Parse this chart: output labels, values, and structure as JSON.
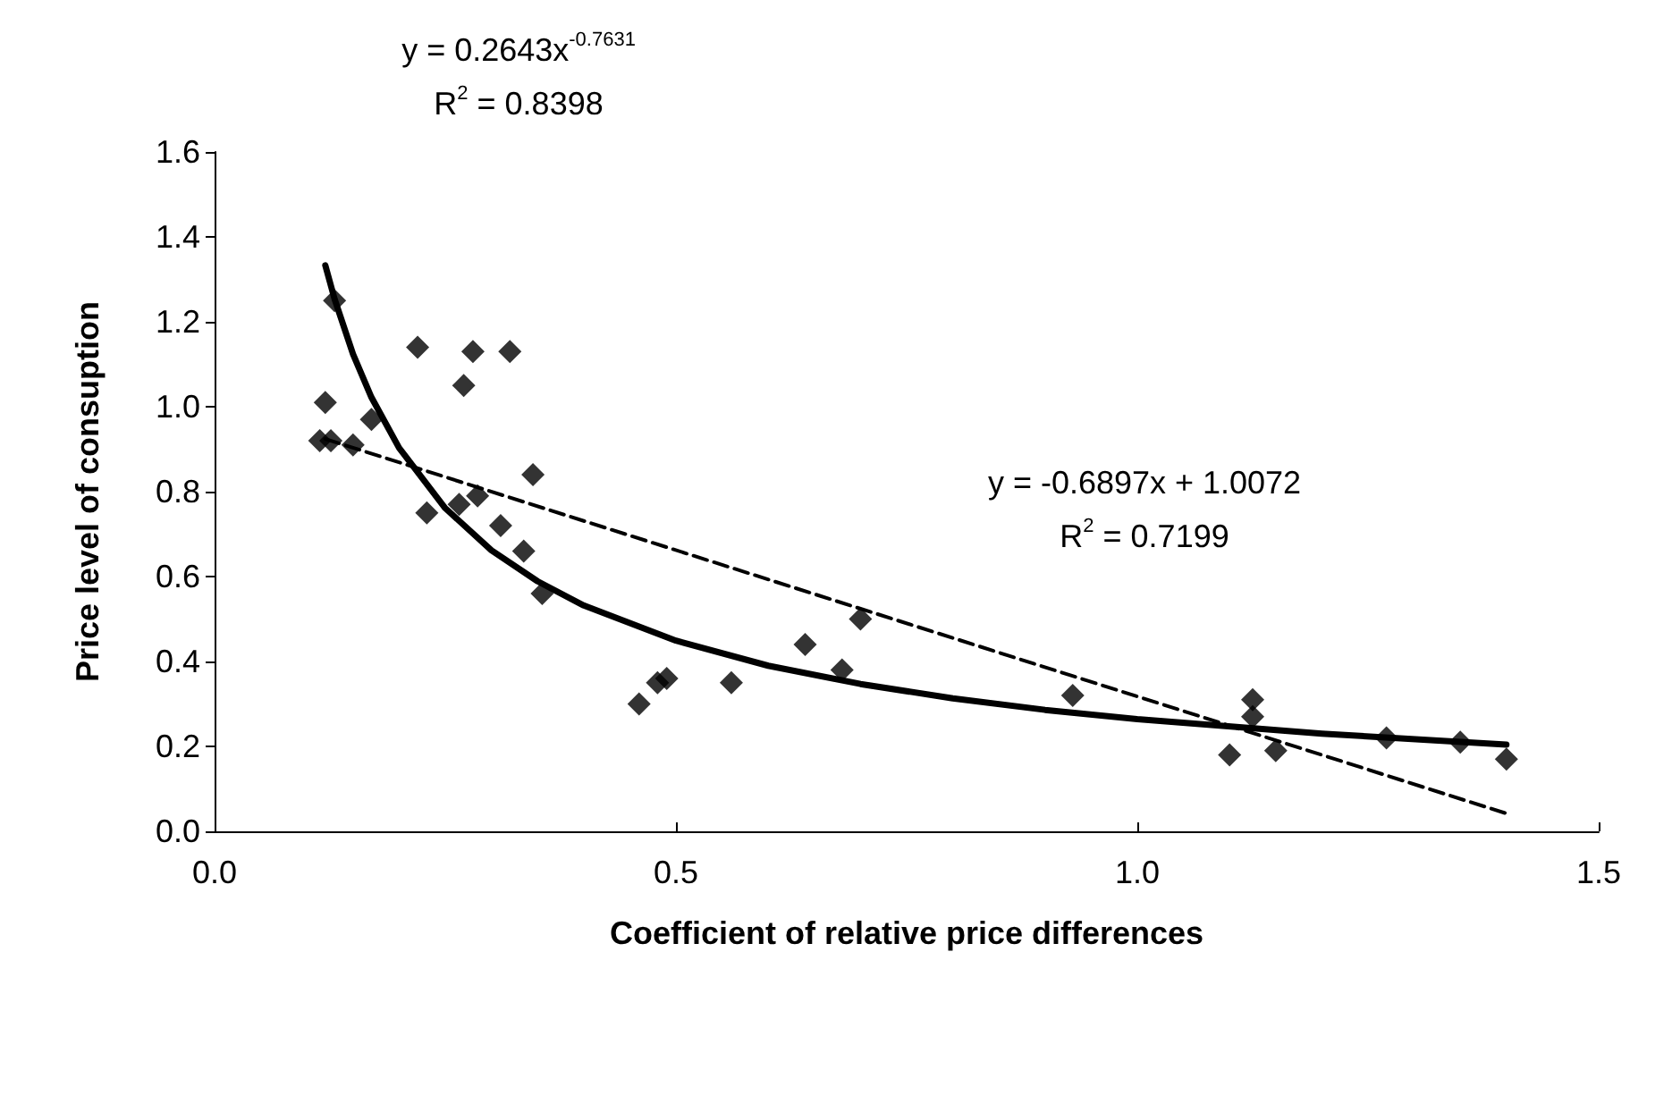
{
  "chart_data": {
    "type": "scatter",
    "xlabel": "Coefficient of relative price differences",
    "ylabel": "Price level of consuption",
    "xlim": [
      0,
      1.5
    ],
    "ylim": [
      0,
      1.6
    ],
    "xticks": [
      {
        "value": 0,
        "label": "0.0"
      },
      {
        "value": 0.5,
        "label": "0.5"
      },
      {
        "value": 1,
        "label": "1.0"
      },
      {
        "value": 1.5,
        "label": "1.5"
      }
    ],
    "yticks": [
      {
        "value": 0,
        "label": "0.0"
      },
      {
        "value": 0.2,
        "label": "0.2"
      },
      {
        "value": 0.4,
        "label": "0.4"
      },
      {
        "value": 0.6,
        "label": "0.6"
      },
      {
        "value": 0.8,
        "label": "0.8"
      },
      {
        "value": 1,
        "label": "1.0"
      },
      {
        "value": 1.2,
        "label": "1.2"
      },
      {
        "value": 1.4,
        "label": "1.4"
      },
      {
        "value": 1.6,
        "label": "1.6"
      }
    ],
    "grid": false,
    "series": [
      {
        "marker": "diamond",
        "color": "#000000",
        "x": [
          0.12,
          0.114,
          0.126,
          0.13,
          0.15,
          0.17,
          0.22,
          0.23,
          0.27,
          0.265,
          0.28,
          0.285,
          0.32,
          0.31,
          0.335,
          0.345,
          0.355,
          0.46,
          0.48,
          0.49,
          0.56,
          0.64,
          0.68,
          0.7,
          0.93,
          1.1,
          1.125,
          1.125,
          1.15,
          1.27,
          1.35,
          1.4
        ],
        "values": [
          1.01,
          0.92,
          0.92,
          1.25,
          0.91,
          0.97,
          1.14,
          0.75,
          1.05,
          0.77,
          1.13,
          0.79,
          1.13,
          0.72,
          0.66,
          0.84,
          0.56,
          0.3,
          0.35,
          0.36,
          0.35,
          0.44,
          0.38,
          0.5,
          0.32,
          0.18,
          0.31,
          0.27,
          0.19,
          0.22,
          0.21,
          0.17
        ]
      },
      {
        "type": "line",
        "marker": "none",
        "line_style": "solid",
        "color": "#000000",
        "x": [
          0.12,
          0.13,
          0.15,
          0.17,
          0.2,
          0.25,
          0.3,
          0.35,
          0.4,
          0.5,
          0.6,
          0.7,
          0.8,
          0.9,
          1.0,
          1.2,
          1.4
        ],
        "values": [
          1.333,
          1.254,
          1.124,
          1.022,
          0.903,
          0.761,
          0.662,
          0.589,
          0.532,
          0.449,
          0.39,
          0.347,
          0.313,
          0.286,
          0.264,
          0.23,
          0.204
        ]
      },
      {
        "type": "line",
        "marker": "none",
        "line_style": "dashed",
        "color": "#000000",
        "x": [
          0.12,
          1.4
        ],
        "values": [
          0.924,
          0.042
        ]
      }
    ],
    "annotations": [
      "y = 0.2643x$^{-0.7631}$",
      "R$^{2}$ = 0.8398",
      "y = -0.6897x + 1.0072",
      "R$^{2}$ = 0.7199"
    ]
  }
}
